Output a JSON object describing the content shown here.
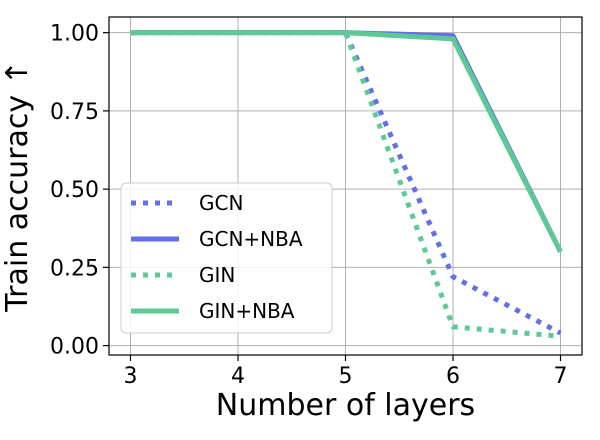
{
  "chart_data": {
    "type": "line",
    "xlabel": "Number of layers",
    "ylabel": "Train accuracy ↑",
    "x": [
      3,
      4,
      5,
      6,
      7
    ],
    "xlim": [
      2.8,
      7.2
    ],
    "ylim": [
      -0.03,
      1.05
    ],
    "yticks": [
      0.0,
      0.25,
      0.5,
      0.75,
      1.0
    ],
    "ytick_labels": [
      "0.00",
      "0.25",
      "0.50",
      "0.75",
      "1.00"
    ],
    "grid": true,
    "legend_position": "lower-left",
    "series": [
      {
        "name": "GCN",
        "values": [
          1.0,
          1.0,
          1.0,
          0.22,
          0.04
        ],
        "color": "#636EE8",
        "style": "dotted"
      },
      {
        "name": "GCN+NBA",
        "values": [
          1.0,
          1.0,
          1.0,
          0.99,
          0.3
        ],
        "color": "#636EE8",
        "style": "solid"
      },
      {
        "name": "GIN",
        "values": [
          1.0,
          1.0,
          1.0,
          0.06,
          0.03
        ],
        "color": "#5CC996",
        "style": "dotted"
      },
      {
        "name": "GIN+NBA",
        "values": [
          1.0,
          1.0,
          1.0,
          0.98,
          0.3
        ],
        "color": "#5CC996",
        "style": "solid"
      }
    ]
  }
}
